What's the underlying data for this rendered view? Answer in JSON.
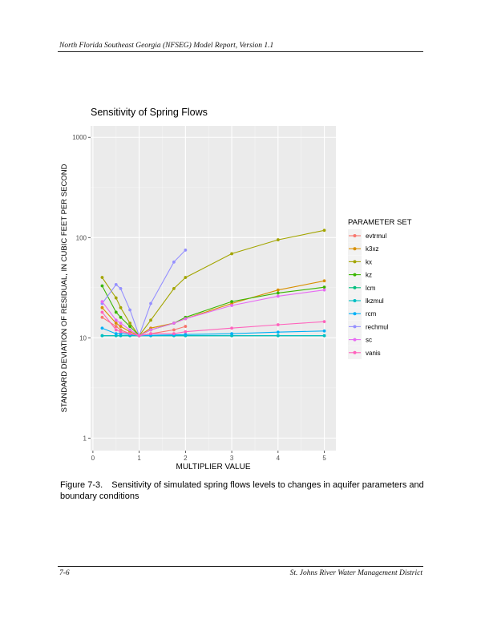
{
  "header": {
    "text": "North Florida Southeast Georgia (NFSEG) Model Report, Version 1.1"
  },
  "footer": {
    "page": "7-6",
    "org": "St. Johns River Water Management District"
  },
  "caption": {
    "number": "Figure 7-3.",
    "text": "Sensitivity of simulated spring flows levels to changes in aquifer parameters and boundary conditions"
  },
  "chart_data": {
    "type": "line",
    "title": "Sensitivity of Spring Flows",
    "xlabel": "MULTIPLIER VALUE",
    "ylabel": "STANDARD DEVIATION OF RESIDUAL, IN CUBIC FEET PER SECOND",
    "xlim": [
      -0.05,
      5.25
    ],
    "ylim": [
      0.75,
      1300
    ],
    "yscale": "log",
    "x_ticks": [
      0,
      1,
      2,
      3,
      4,
      5
    ],
    "y_ticks": [
      1,
      10,
      100,
      1000
    ],
    "y_tick_labels": [
      "1",
      "10",
      "100",
      "1000"
    ],
    "grid": true,
    "legend_title": "PARAMETER SET",
    "legend_position": "right",
    "series": [
      {
        "name": "evtrmul",
        "color": "#F8766D",
        "x": [
          0.2,
          0.5,
          0.6,
          0.8,
          1,
          1.25,
          1.75,
          2
        ],
        "y": [
          16,
          13,
          12,
          11,
          10.5,
          11,
          12,
          13
        ]
      },
      {
        "name": "k3xz",
        "color": "#D89000",
        "x": [
          0.2,
          0.5,
          0.6,
          0.8,
          1,
          1.25,
          1.75,
          2,
          3,
          4,
          5
        ],
        "y": [
          20,
          14,
          13,
          11.5,
          10.5,
          12.5,
          14,
          15.5,
          22,
          30,
          37
        ]
      },
      {
        "name": "kx",
        "color": "#A3A500",
        "x": [
          0.2,
          0.5,
          0.6,
          0.8,
          1,
          1.25,
          1.75,
          2,
          3,
          4,
          5
        ],
        "y": [
          40,
          25,
          20,
          14,
          10.5,
          15,
          31,
          40,
          69,
          95,
          118
        ]
      },
      {
        "name": "kz",
        "color": "#39B600",
        "x": [
          0.2,
          0.5,
          0.6,
          0.8,
          1,
          1.25,
          1.75,
          2,
          3,
          4,
          5
        ],
        "y": [
          33,
          18,
          16,
          13,
          10.5,
          12,
          14,
          16,
          23,
          28,
          32
        ]
      },
      {
        "name": "lcm",
        "color": "#00BF7D",
        "x": [
          0.2,
          0.5,
          0.6,
          0.8,
          1,
          1.25,
          1.75,
          2,
          3,
          4,
          5
        ],
        "y": [
          10.5,
          10.5,
          10.5,
          10.5,
          10.5,
          10.5,
          10.5,
          10.5,
          10.5,
          10.5,
          10.5
        ]
      },
      {
        "name": "lkzmul",
        "color": "#00BFC4",
        "x": [
          0.2,
          0.5,
          0.6,
          0.8,
          1,
          1.25,
          1.75,
          2,
          3,
          4,
          5
        ],
        "y": [
          10.5,
          10.5,
          10.5,
          10.5,
          10.5,
          10.5,
          10.5,
          10.5,
          10.5,
          10.5,
          10.5
        ]
      },
      {
        "name": "rcm",
        "color": "#00B0F6",
        "x": [
          0.2,
          0.5,
          0.6,
          0.8,
          1,
          1.25,
          1.75,
          2,
          3,
          4,
          5
        ],
        "y": [
          12.5,
          11,
          11,
          10.8,
          10.5,
          10.6,
          10.7,
          10.8,
          11,
          11.4,
          11.7
        ]
      },
      {
        "name": "rechmul",
        "color": "#9590FF",
        "x": [
          0.2,
          0.5,
          0.6,
          0.8,
          1,
          1.25,
          1.75,
          2
        ],
        "y": [
          22,
          34,
          31,
          19,
          10.5,
          22,
          57,
          75
        ]
      },
      {
        "name": "sc",
        "color": "#E76BF3",
        "x": [
          0.2,
          0.5,
          0.6,
          0.8,
          1,
          1.25,
          1.75,
          2,
          3,
          4,
          5
        ],
        "y": [
          23,
          15,
          14,
          12,
          10.5,
          12,
          14,
          15.5,
          21,
          26,
          30
        ]
      },
      {
        "name": "vanis",
        "color": "#FF62BC",
        "x": [
          0.2,
          0.5,
          0.6,
          0.8,
          1,
          1.25,
          1.75,
          2,
          3,
          4,
          5
        ],
        "y": [
          18,
          12,
          11.5,
          11,
          10.5,
          11,
          11,
          11.5,
          12.5,
          13.5,
          14.5
        ]
      }
    ]
  }
}
